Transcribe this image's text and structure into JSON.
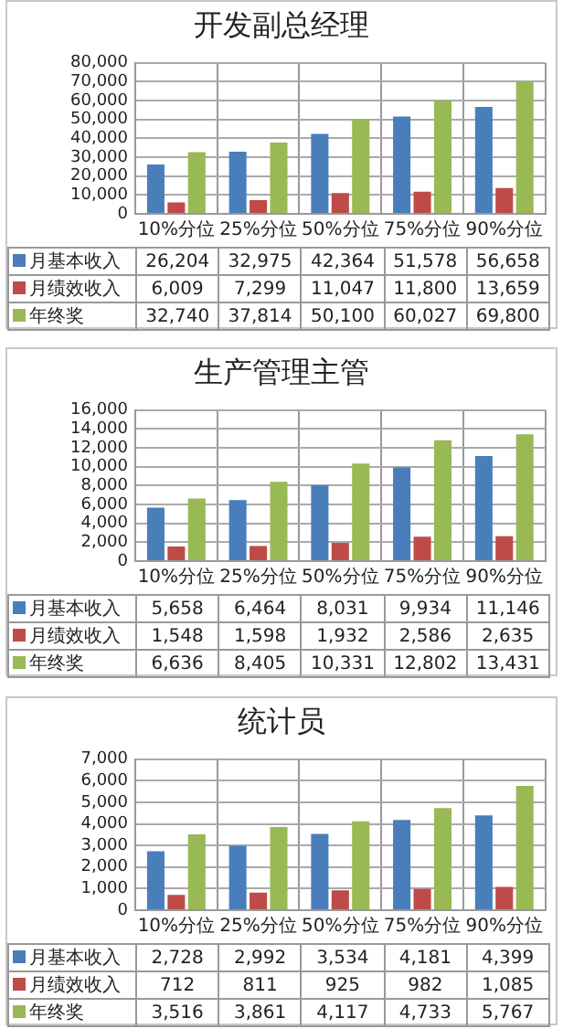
{
  "chart_data": [
    {
      "type": "bar",
      "title": "开发副总经理",
      "categories": [
        "10%分位",
        "25%分位",
        "50%分位",
        "75%分位",
        "90%分位"
      ],
      "legend": "bottom left",
      "ylim": [
        0,
        80000
      ],
      "yticks": [
        {
          "value": 0,
          "label": "0"
        },
        {
          "value": 10000,
          "label": "10,000"
        },
        {
          "value": 20000,
          "label": "20,000"
        },
        {
          "value": 30000,
          "label": "30,000"
        },
        {
          "value": 40000,
          "label": "40,000"
        },
        {
          "value": 50000,
          "label": "50,000"
        },
        {
          "value": 60000,
          "label": "60,000"
        },
        {
          "value": 70000,
          "label": "70,000"
        },
        {
          "value": 80000,
          "label": "80,000"
        }
      ],
      "grid": "y",
      "series": [
        {
          "name": "月基本收入",
          "color": "#4a7ebb",
          "values": [
            26204,
            32975,
            42364,
            51578,
            56658
          ],
          "value_labels": [
            "26,204",
            "32,975",
            "42,364",
            "51,578",
            "56,658"
          ]
        },
        {
          "name": "月绩效收入",
          "color": "#be4b48",
          "values": [
            6009,
            7299,
            11047,
            11800,
            13659
          ],
          "value_labels": [
            "6,009",
            "7,299",
            "11,047",
            "11,800",
            "13,659"
          ]
        },
        {
          "name": "年终奖",
          "color": "#98b954",
          "values": [
            32740,
            37814,
            50100,
            60027,
            69800
          ],
          "value_labels": [
            "32,740",
            "37,814",
            "50,100",
            "60,027",
            "69,800"
          ]
        }
      ]
    },
    {
      "type": "bar",
      "title": "生产管理主管",
      "categories": [
        "10%分位",
        "25%分位",
        "50%分位",
        "75%分位",
        "90%分位"
      ],
      "legend": "bottom left",
      "ylim": [
        0,
        16000
      ],
      "yticks": [
        {
          "value": 0,
          "label": "0"
        },
        {
          "value": 2000,
          "label": "2,000"
        },
        {
          "value": 4000,
          "label": "4,000"
        },
        {
          "value": 6000,
          "label": "6,000"
        },
        {
          "value": 8000,
          "label": "8,000"
        },
        {
          "value": 10000,
          "label": "10,000"
        },
        {
          "value": 12000,
          "label": "12,000"
        },
        {
          "value": 14000,
          "label": "14,000"
        },
        {
          "value": 16000,
          "label": "16,000"
        }
      ],
      "grid": "y",
      "series": [
        {
          "name": "月基本收入",
          "color": "#4a7ebb",
          "values": [
            5658,
            6464,
            8031,
            9934,
            11146
          ],
          "value_labels": [
            "5,658",
            "6,464",
            "8,031",
            "9,934",
            "11,146"
          ]
        },
        {
          "name": "月绩效收入",
          "color": "#be4b48",
          "values": [
            1548,
            1598,
            1932,
            2586,
            2635
          ],
          "value_labels": [
            "1,548",
            "1,598",
            "1,932",
            "2,586",
            "2,635"
          ]
        },
        {
          "name": "年终奖",
          "color": "#98b954",
          "values": [
            6636,
            8405,
            10331,
            12802,
            13431
          ],
          "value_labels": [
            "6,636",
            "8,405",
            "10,331",
            "12,802",
            "13,431"
          ]
        }
      ]
    },
    {
      "type": "bar",
      "title": "统计员",
      "categories": [
        "10%分位",
        "25%分位",
        "50%分位",
        "75%分位",
        "90%分位"
      ],
      "legend": "bottom left",
      "ylim": [
        0,
        7000
      ],
      "yticks": [
        {
          "value": 0,
          "label": "0"
        },
        {
          "value": 1000,
          "label": "1,000"
        },
        {
          "value": 2000,
          "label": "2,000"
        },
        {
          "value": 3000,
          "label": "3,000"
        },
        {
          "value": 4000,
          "label": "4,000"
        },
        {
          "value": 5000,
          "label": "5,000"
        },
        {
          "value": 6000,
          "label": "6,000"
        },
        {
          "value": 7000,
          "label": "7,000"
        }
      ],
      "grid": "y",
      "series": [
        {
          "name": "月基本收入",
          "color": "#4a7ebb",
          "values": [
            2728,
            2992,
            3534,
            4181,
            4399
          ],
          "value_labels": [
            "2,728",
            "2,992",
            "3,534",
            "4,181",
            "4,399"
          ]
        },
        {
          "name": "月绩效收入",
          "color": "#be4b48",
          "values": [
            712,
            811,
            925,
            982,
            1085
          ],
          "value_labels": [
            "712",
            "811",
            "925",
            "982",
            "1,085"
          ]
        },
        {
          "name": "年终奖",
          "color": "#98b954",
          "values": [
            3516,
            3861,
            4117,
            4733,
            5767
          ],
          "value_labels": [
            "3,516",
            "3,861",
            "4,117",
            "4,733",
            "5,767"
          ]
        }
      ]
    }
  ]
}
